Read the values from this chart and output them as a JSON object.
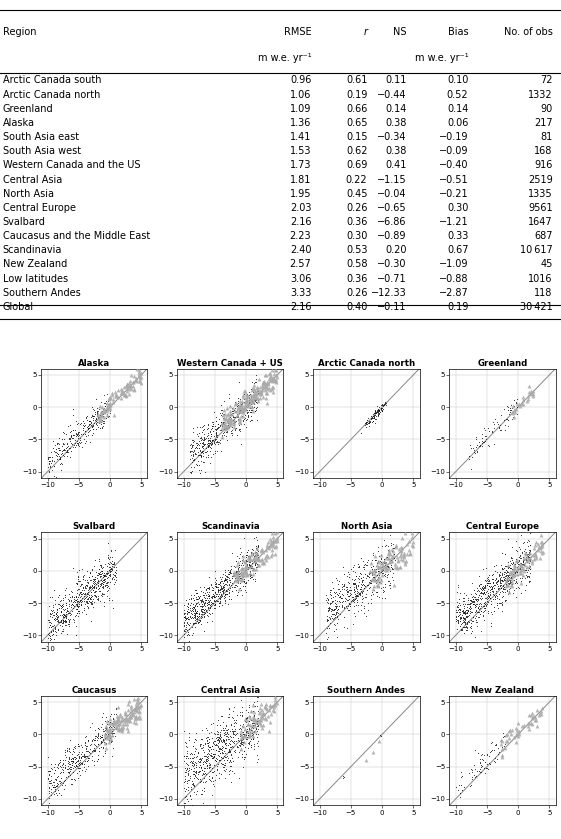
{
  "table": {
    "rows": [
      [
        "Arctic Canada south",
        "0.96",
        "0.61",
        "0.11",
        "0.10",
        "72"
      ],
      [
        "Arctic Canada north",
        "1.06",
        "0.19",
        "−0.44",
        "0.52",
        "1332"
      ],
      [
        "Greenland",
        "1.09",
        "0.66",
        "0.14",
        "0.14",
        "90"
      ],
      [
        "Alaska",
        "1.36",
        "0.65",
        "0.38",
        "0.06",
        "217"
      ],
      [
        "South Asia east",
        "1.41",
        "0.15",
        "−0.34",
        "−0.19",
        "81"
      ],
      [
        "South Asia west",
        "1.53",
        "0.62",
        "0.38",
        "−0.09",
        "168"
      ],
      [
        "Western Canada and the US",
        "1.73",
        "0.69",
        "0.41",
        "−0.40",
        "916"
      ],
      [
        "Central Asia",
        "1.81",
        "0.22",
        "−1.15",
        "−0.51",
        "2519"
      ],
      [
        "North Asia",
        "1.95",
        "0.45",
        "−0.04",
        "−0.21",
        "1335"
      ],
      [
        "Central Europe",
        "2.03",
        "0.26",
        "−0.65",
        "0.30",
        "9561"
      ],
      [
        "Svalbard",
        "2.16",
        "0.36",
        "−6.86",
        "−1.21",
        "1647"
      ],
      [
        "Caucasus and the Middle East",
        "2.23",
        "0.30",
        "−0.89",
        "0.33",
        "687"
      ],
      [
        "Scandinavia",
        "2.40",
        "0.53",
        "0.20",
        "0.67",
        "10 617"
      ],
      [
        "New Zealand",
        "2.57",
        "0.58",
        "−0.30",
        "−1.09",
        "45"
      ],
      [
        "Low latitudes",
        "3.06",
        "0.36",
        "−0.71",
        "−0.88",
        "1016"
      ],
      [
        "Southern Andes",
        "3.33",
        "0.26",
        "−12.33",
        "−2.87",
        "118"
      ],
      [
        "Global",
        "2.16",
        "0.40",
        "−0.11",
        "0.19",
        "30 421"
      ]
    ]
  },
  "panels": [
    "Alaska",
    "Western Canada + US",
    "Arctic Canada north",
    "Greenland",
    "Svalbard",
    "Scandinavia",
    "North Asia",
    "Central Europe",
    "Caucasus",
    "Central Asia",
    "Southern Andes",
    "New Zealand"
  ],
  "bg": "#ffffff",
  "dot_color": "#111111",
  "tri_color": "#aaaaaa",
  "line_color": "#888888"
}
